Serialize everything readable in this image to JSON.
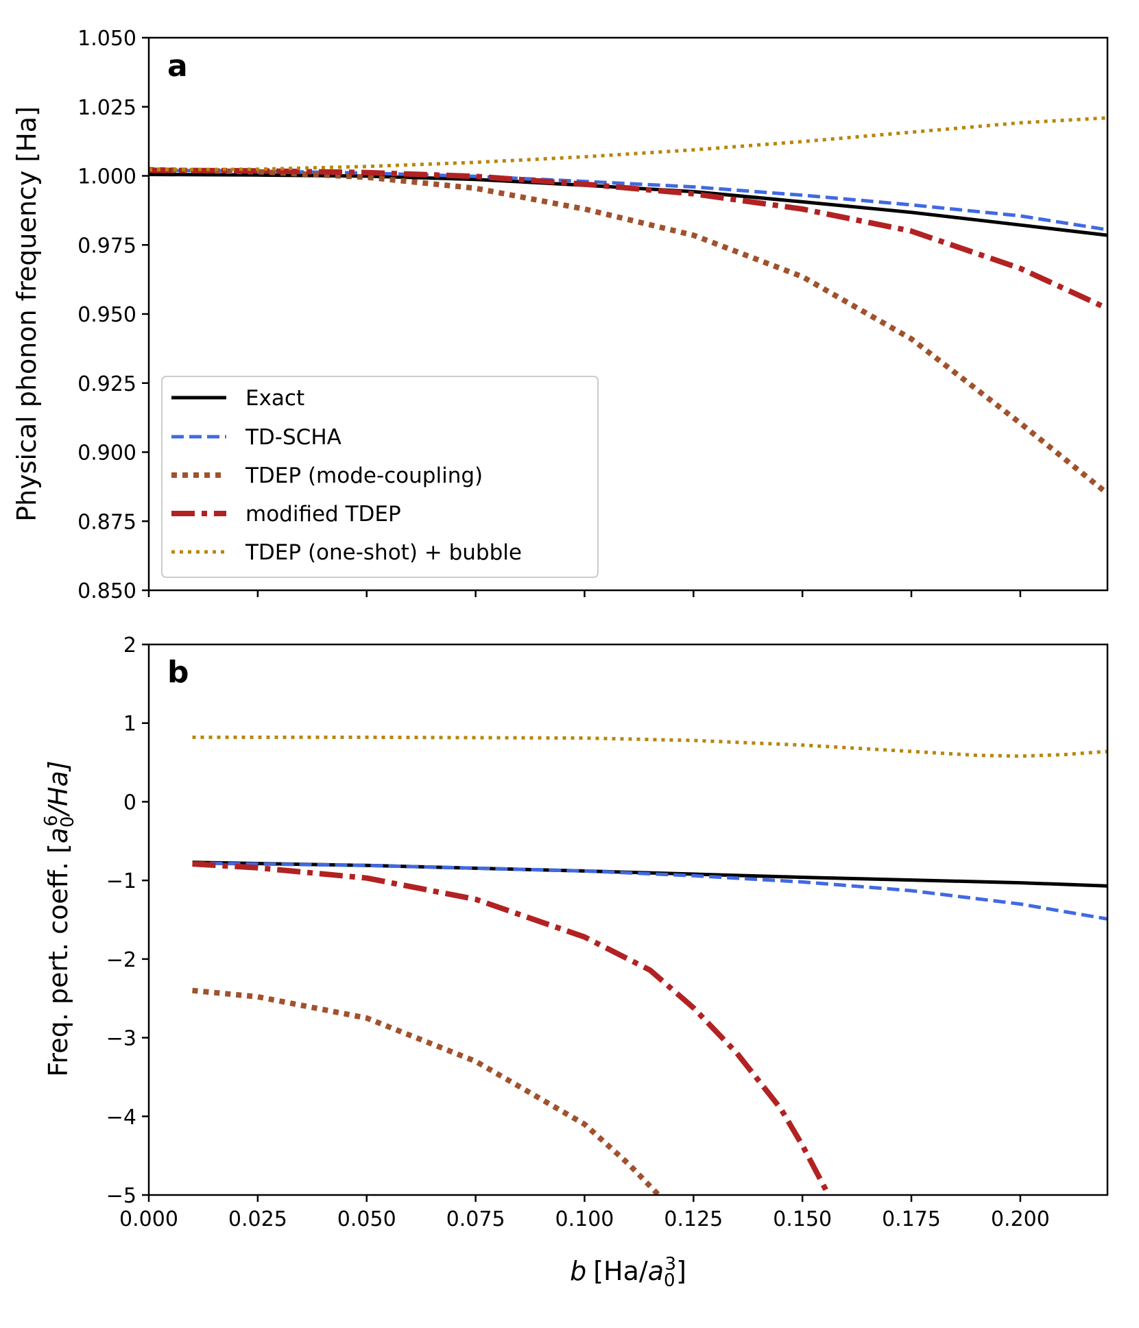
{
  "chart_data": [
    {
      "type": "line",
      "panel_label": "a",
      "ylabel": "Physical phonon frequency [Ha]",
      "xlim": [
        0.0,
        0.22
      ],
      "ylim": [
        0.85,
        1.05
      ],
      "xticks": [
        0.0,
        0.025,
        0.05,
        0.075,
        0.1,
        0.125,
        0.15,
        0.175,
        0.2
      ],
      "yticks": [
        0.85,
        0.875,
        0.9,
        0.925,
        0.95,
        0.975,
        1.0,
        1.025,
        1.05
      ],
      "ytick_labels": [
        "0.850",
        "0.875",
        "0.900",
        "0.925",
        "0.950",
        "0.975",
        "1.000",
        "1.025",
        "1.050"
      ],
      "legend_position": "lower-left",
      "series": [
        {
          "name": "Exact",
          "color": "#000000",
          "style": "solid",
          "x": [
            0.0,
            0.025,
            0.05,
            0.075,
            0.1,
            0.125,
            0.15,
            0.175,
            0.2,
            0.22
          ],
          "y": [
            1.0005,
            1.0003,
            0.9999,
            0.9987,
            0.9966,
            0.9943,
            0.9906,
            0.9868,
            0.9822,
            0.9785
          ]
        },
        {
          "name": "TD-SCHA",
          "color": "#4169e1",
          "style": "dashed",
          "x": [
            0.0,
            0.025,
            0.05,
            0.075,
            0.1,
            0.125,
            0.15,
            0.175,
            0.2,
            0.22
          ],
          "y": [
            1.002,
            1.0017,
            1.001,
            0.9998,
            0.998,
            0.996,
            0.993,
            0.9895,
            0.9855,
            0.9805
          ]
        },
        {
          "name": "TDEP (mode-coupling)",
          "color": "#a0522d",
          "style": "dotted",
          "x": [
            0.0,
            0.025,
            0.05,
            0.075,
            0.1,
            0.125,
            0.15,
            0.175,
            0.2,
            0.22
          ],
          "y": [
            1.0022,
            1.0015,
            0.9995,
            0.9955,
            0.988,
            0.9785,
            0.9635,
            0.941,
            0.9105,
            0.885
          ]
        },
        {
          "name": "modified TDEP",
          "color": "#b22222",
          "style": "dashdot",
          "x": [
            0.0,
            0.025,
            0.05,
            0.075,
            0.1,
            0.125,
            0.15,
            0.175,
            0.2,
            0.22
          ],
          "y": [
            1.002,
            1.0018,
            1.0012,
            0.9998,
            0.997,
            0.9935,
            0.988,
            0.98,
            0.9665,
            0.952
          ]
        },
        {
          "name": "TDEP (one-shot) + bubble",
          "color": "#b8860b",
          "style": "fine-dotted",
          "x": [
            0.0,
            0.025,
            0.05,
            0.075,
            0.1,
            0.125,
            0.15,
            0.175,
            0.2,
            0.22
          ],
          "y": [
            1.0022,
            1.0024,
            1.0034,
            1.0049,
            1.0069,
            1.0094,
            1.0124,
            1.0158,
            1.0192,
            1.021
          ]
        }
      ]
    },
    {
      "type": "line",
      "panel_label": "b",
      "xlabel_var": "b",
      "xlabel_unit": "[Ha/",
      "xlabel_sym": "a",
      "xlabel_sub": "0",
      "xlabel_sup": "3",
      "xlabel_close": "]",
      "ylabel_prefix": "Freq. pert. coeff. [",
      "ylabel_sym": "a",
      "ylabel_sub": "0",
      "ylabel_sup": "6",
      "ylabel_rest": "/Ha]",
      "xlim": [
        0.0,
        0.22
      ],
      "ylim": [
        -5,
        2
      ],
      "xticks": [
        0.0,
        0.025,
        0.05,
        0.075,
        0.1,
        0.125,
        0.15,
        0.175,
        0.2
      ],
      "xtick_labels": [
        "0.000",
        "0.025",
        "0.050",
        "0.075",
        "0.100",
        "0.125",
        "0.150",
        "0.175",
        "0.200"
      ],
      "yticks": [
        -5,
        -4,
        -3,
        -2,
        -1,
        0,
        1,
        2
      ],
      "ytick_labels": [
        "−5",
        "−4",
        "−3",
        "−2",
        "−1",
        "0",
        "1",
        "2"
      ],
      "series": [
        {
          "name": "Exact",
          "color": "#000000",
          "style": "solid",
          "x": [
            0.01,
            0.05,
            0.1,
            0.15,
            0.2,
            0.22
          ],
          "y": [
            -0.77,
            -0.81,
            -0.88,
            -0.96,
            -1.03,
            -1.07
          ]
        },
        {
          "name": "TD-SCHA",
          "color": "#4169e1",
          "style": "dashed",
          "x": [
            0.01,
            0.05,
            0.1,
            0.125,
            0.15,
            0.175,
            0.2,
            0.22
          ],
          "y": [
            -0.78,
            -0.81,
            -0.88,
            -0.94,
            -1.02,
            -1.13,
            -1.3,
            -1.49
          ]
        },
        {
          "name": "TDEP (mode-coupling)",
          "color": "#a0522d",
          "style": "dotted",
          "x": [
            0.01,
            0.025,
            0.05,
            0.075,
            0.1,
            0.11,
            0.117
          ],
          "y": [
            -2.4,
            -2.48,
            -2.75,
            -3.3,
            -4.1,
            -4.6,
            -5.0
          ]
        },
        {
          "name": "modified TDEP",
          "color": "#b22222",
          "style": "dashdot",
          "x": [
            0.01,
            0.025,
            0.05,
            0.075,
            0.1,
            0.115,
            0.125,
            0.135,
            0.145,
            0.15,
            0.156
          ],
          "y": [
            -0.79,
            -0.84,
            -0.97,
            -1.24,
            -1.72,
            -2.14,
            -2.62,
            -3.2,
            -3.9,
            -4.37,
            -5.0
          ]
        },
        {
          "name": "TDEP (one-shot) + bubble",
          "color": "#b8860b",
          "style": "fine-dotted",
          "x": [
            0.01,
            0.05,
            0.1,
            0.125,
            0.15,
            0.175,
            0.19,
            0.2,
            0.21,
            0.22
          ],
          "y": [
            0.82,
            0.82,
            0.81,
            0.78,
            0.72,
            0.64,
            0.59,
            0.58,
            0.6,
            0.64
          ]
        }
      ]
    }
  ]
}
